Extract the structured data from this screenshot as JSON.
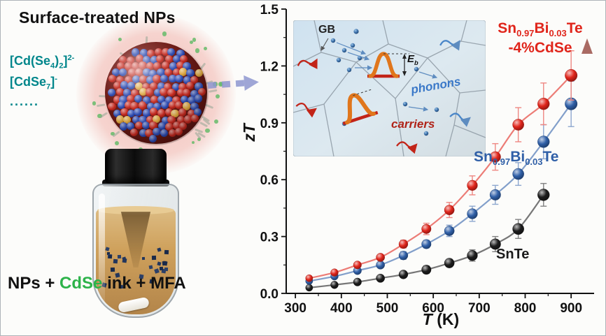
{
  "left": {
    "title": "Surface-treated NPs",
    "formulas": [
      "[Cd(Se_{4})_{2}]^{2-}",
      "[CdSe_{7}]^{-}",
      "......"
    ],
    "formula_color": "#00868b",
    "bottom_parts": [
      {
        "t": "NPs + "
      },
      {
        "t": "CdSe",
        "color": "#2db34a"
      },
      {
        "t": " ink + MFA"
      }
    ],
    "transfer_arrow_color": "#8e96cf"
  },
  "inset": {
    "gb_label": "GB",
    "eb_label": "E_{b}",
    "phonons_label": "phonons",
    "carriers_label": "carriers",
    "phonons_color": "#3a78c8",
    "carriers_color": "#b02318"
  },
  "chart_data": {
    "type": "scatter",
    "title": "",
    "xlabel": "T (K)",
    "ylabel": "zT",
    "xlabel_parts": [
      {
        "t": "T",
        "italic": true
      },
      {
        "t": " (K)"
      }
    ],
    "ylabel_parts": [
      {
        "t": "zT",
        "italic": true
      }
    ],
    "xlim": [
      280,
      950
    ],
    "ylim": [
      0,
      1.5
    ],
    "xticks": [
      300,
      400,
      500,
      600,
      700,
      800,
      900
    ],
    "yticks": [
      0,
      0.3,
      0.6,
      0.9,
      1.2,
      1.5
    ],
    "grid": false,
    "legend_position": "inline-labels",
    "series": [
      {
        "name": "SnTe",
        "label": "SnTe",
        "color": "#1c1c1c",
        "x": [
          330,
          385,
          435,
          485,
          535,
          585,
          635,
          685,
          735,
          785,
          840
        ],
        "y": [
          0.03,
          0.045,
          0.06,
          0.08,
          0.1,
          0.125,
          0.16,
          0.2,
          0.26,
          0.34,
          0.52
        ],
        "err": [
          0,
          0,
          0,
          0,
          0,
          0.02,
          0.02,
          0.03,
          0.04,
          0.05,
          0.06
        ]
      },
      {
        "name": "Sn0.97Bi0.03Te",
        "label": "Sn_{0.97}Bi_{0.03}Te",
        "color": "#2f5fa7",
        "x": [
          330,
          385,
          435,
          485,
          535,
          585,
          635,
          685,
          735,
          785,
          840,
          900
        ],
        "y": [
          0.065,
          0.09,
          0.12,
          0.15,
          0.2,
          0.26,
          0.33,
          0.42,
          0.52,
          0.63,
          0.8,
          1.0
        ],
        "err": [
          0,
          0,
          0,
          0,
          0.02,
          0.02,
          0.03,
          0.04,
          0.05,
          0.06,
          0.09,
          0.12
        ]
      },
      {
        "name": "Sn0.97Bi0.03Te-4%CdSe",
        "label": "Sn_{0.97}Bi_{0.03}Te",
        "label2": "-4%CdSe",
        "color": "#e0251b",
        "x": [
          330,
          385,
          435,
          485,
          535,
          585,
          635,
          685,
          735,
          785,
          840,
          900
        ],
        "y": [
          0.08,
          0.11,
          0.15,
          0.19,
          0.26,
          0.34,
          0.44,
          0.57,
          0.72,
          0.89,
          1.0,
          1.15
        ],
        "err": [
          0,
          0,
          0,
          0,
          0.02,
          0.03,
          0.04,
          0.05,
          0.07,
          0.09,
          0.11,
          0.13
        ]
      }
    ]
  }
}
